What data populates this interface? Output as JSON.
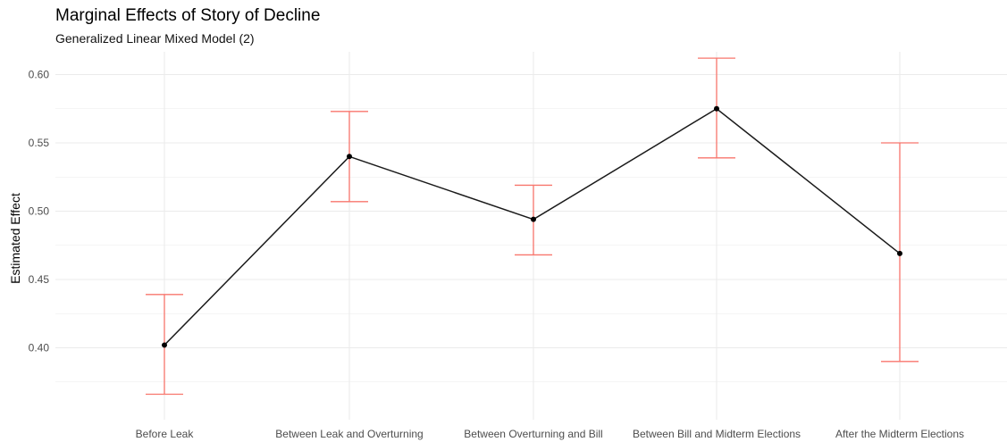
{
  "chart_data": {
    "type": "line",
    "title": "Marginal Effects of Story of Decline",
    "subtitle": "Generalized Linear Mixed Model (2)",
    "xlabel": "",
    "ylabel": "Estimated Effect",
    "categories": [
      "Before Leak",
      "Between Leak and Overturning",
      "Between Overturning and Bill",
      "Between Bill and Midterm Elections",
      "After the Midterm Elections"
    ],
    "values": [
      0.402,
      0.54,
      0.494,
      0.575,
      0.469
    ],
    "error_low": [
      0.366,
      0.507,
      0.468,
      0.539,
      0.39
    ],
    "error_high": [
      0.439,
      0.573,
      0.519,
      0.612,
      0.55
    ],
    "ylim": [
      0.35,
      0.625
    ],
    "yticks": [
      "0.40",
      "0.45",
      "0.50",
      "0.55",
      "0.60"
    ],
    "grid": true,
    "colors": {
      "line": "#1a1a1a",
      "point": "#000000",
      "errorbar": "#f8766d",
      "grid": "#ebebeb"
    }
  }
}
